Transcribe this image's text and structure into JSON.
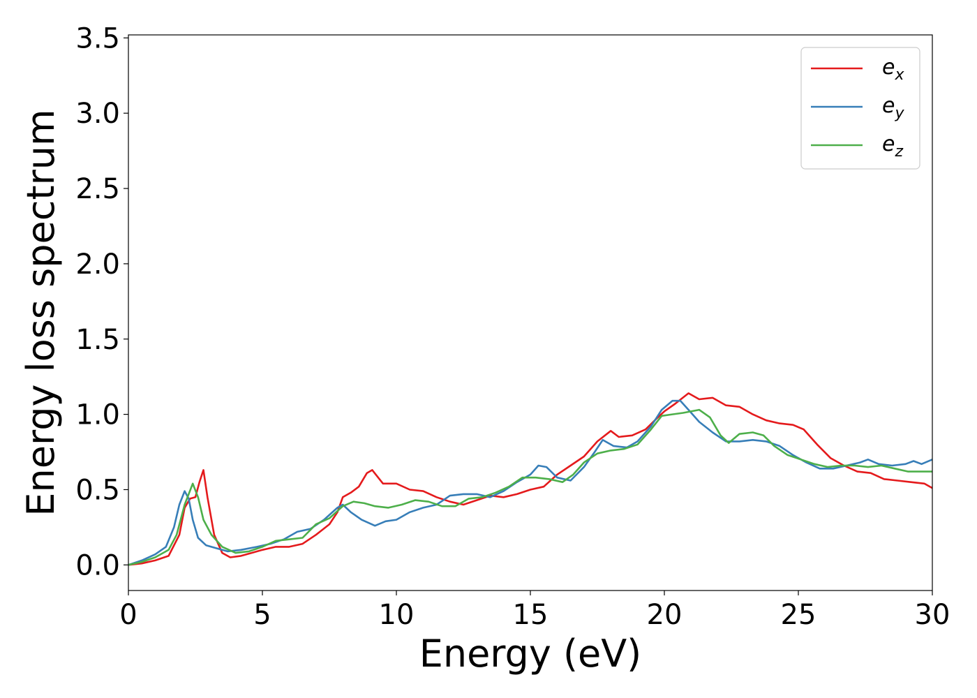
{
  "chart_data": {
    "type": "line",
    "xlabel": "Energy (eV)",
    "ylabel": "Energy loss spectrum",
    "xlim": [
      0,
      30
    ],
    "ylim": [
      -0.17,
      3.52
    ],
    "xticks": [
      0,
      5,
      10,
      15,
      20,
      25,
      30
    ],
    "xtick_labels": [
      "0",
      "5",
      "10",
      "15",
      "20",
      "25",
      "30"
    ],
    "yticks": [
      0.0,
      0.5,
      1.0,
      1.5,
      2.0,
      2.5,
      3.0,
      3.5
    ],
    "ytick_labels": [
      "0.0",
      "0.5",
      "1.0",
      "1.5",
      "2.0",
      "2.5",
      "3.0",
      "3.5"
    ],
    "grid": false,
    "legend_position": "top-right",
    "series": [
      {
        "name": "e",
        "subscript": "x",
        "color": "#e41a1c",
        "points": [
          [
            0,
            0.0
          ],
          [
            0.5,
            0.01
          ],
          [
            1.0,
            0.03
          ],
          [
            1.5,
            0.06
          ],
          [
            1.9,
            0.2
          ],
          [
            2.1,
            0.38
          ],
          [
            2.3,
            0.44
          ],
          [
            2.5,
            0.45
          ],
          [
            2.65,
            0.55
          ],
          [
            2.8,
            0.63
          ],
          [
            2.95,
            0.45
          ],
          [
            3.2,
            0.2
          ],
          [
            3.5,
            0.08
          ],
          [
            3.8,
            0.05
          ],
          [
            4.2,
            0.06
          ],
          [
            4.6,
            0.08
          ],
          [
            5.0,
            0.1
          ],
          [
            5.5,
            0.12
          ],
          [
            6.0,
            0.12
          ],
          [
            6.5,
            0.14
          ],
          [
            7.0,
            0.2
          ],
          [
            7.5,
            0.27
          ],
          [
            7.8,
            0.35
          ],
          [
            8.0,
            0.45
          ],
          [
            8.3,
            0.48
          ],
          [
            8.6,
            0.52
          ],
          [
            8.9,
            0.61
          ],
          [
            9.1,
            0.63
          ],
          [
            9.5,
            0.54
          ],
          [
            10.0,
            0.54
          ],
          [
            10.5,
            0.5
          ],
          [
            11.0,
            0.49
          ],
          [
            11.5,
            0.45
          ],
          [
            12.0,
            0.42
          ],
          [
            12.5,
            0.4
          ],
          [
            13.0,
            0.43
          ],
          [
            13.5,
            0.46
          ],
          [
            14.0,
            0.45
          ],
          [
            14.5,
            0.47
          ],
          [
            15.0,
            0.5
          ],
          [
            15.5,
            0.52
          ],
          [
            16.0,
            0.6
          ],
          [
            16.5,
            0.66
          ],
          [
            17.0,
            0.72
          ],
          [
            17.5,
            0.82
          ],
          [
            18.0,
            0.89
          ],
          [
            18.3,
            0.85
          ],
          [
            18.8,
            0.86
          ],
          [
            19.3,
            0.9
          ],
          [
            19.7,
            0.97
          ],
          [
            20.0,
            1.02
          ],
          [
            20.4,
            1.07
          ],
          [
            20.9,
            1.14
          ],
          [
            21.3,
            1.1
          ],
          [
            21.8,
            1.11
          ],
          [
            22.3,
            1.06
          ],
          [
            22.8,
            1.05
          ],
          [
            23.3,
            1.0
          ],
          [
            23.8,
            0.96
          ],
          [
            24.3,
            0.94
          ],
          [
            24.8,
            0.93
          ],
          [
            25.2,
            0.9
          ],
          [
            25.7,
            0.8
          ],
          [
            26.2,
            0.71
          ],
          [
            26.7,
            0.66
          ],
          [
            27.2,
            0.62
          ],
          [
            27.7,
            0.61
          ],
          [
            28.2,
            0.57
          ],
          [
            28.7,
            0.56
          ],
          [
            29.2,
            0.55
          ],
          [
            29.7,
            0.54
          ],
          [
            30.0,
            0.51
          ]
        ]
      },
      {
        "name": "e",
        "subscript": "y",
        "color": "#377eb8",
        "points": [
          [
            0,
            0.0
          ],
          [
            0.5,
            0.03
          ],
          [
            1.0,
            0.07
          ],
          [
            1.4,
            0.12
          ],
          [
            1.7,
            0.25
          ],
          [
            1.9,
            0.4
          ],
          [
            2.1,
            0.49
          ],
          [
            2.25,
            0.44
          ],
          [
            2.4,
            0.3
          ],
          [
            2.6,
            0.18
          ],
          [
            2.9,
            0.13
          ],
          [
            3.3,
            0.11
          ],
          [
            3.7,
            0.09
          ],
          [
            4.2,
            0.1
          ],
          [
            4.8,
            0.12
          ],
          [
            5.3,
            0.14
          ],
          [
            5.8,
            0.17
          ],
          [
            6.3,
            0.22
          ],
          [
            6.8,
            0.24
          ],
          [
            7.3,
            0.3
          ],
          [
            7.8,
            0.38
          ],
          [
            8.0,
            0.4
          ],
          [
            8.3,
            0.35
          ],
          [
            8.7,
            0.3
          ],
          [
            9.2,
            0.26
          ],
          [
            9.6,
            0.29
          ],
          [
            10.0,
            0.3
          ],
          [
            10.5,
            0.35
          ],
          [
            11.0,
            0.38
          ],
          [
            11.5,
            0.4
          ],
          [
            12.0,
            0.46
          ],
          [
            12.5,
            0.47
          ],
          [
            13.0,
            0.47
          ],
          [
            13.5,
            0.45
          ],
          [
            14.0,
            0.49
          ],
          [
            14.5,
            0.55
          ],
          [
            15.0,
            0.6
          ],
          [
            15.3,
            0.66
          ],
          [
            15.6,
            0.65
          ],
          [
            16.0,
            0.58
          ],
          [
            16.5,
            0.56
          ],
          [
            17.0,
            0.65
          ],
          [
            17.4,
            0.75
          ],
          [
            17.7,
            0.83
          ],
          [
            18.1,
            0.79
          ],
          [
            18.6,
            0.78
          ],
          [
            19.0,
            0.82
          ],
          [
            19.5,
            0.92
          ],
          [
            19.9,
            1.03
          ],
          [
            20.3,
            1.09
          ],
          [
            20.6,
            1.09
          ],
          [
            20.9,
            1.03
          ],
          [
            21.3,
            0.95
          ],
          [
            21.8,
            0.88
          ],
          [
            22.3,
            0.82
          ],
          [
            22.8,
            0.82
          ],
          [
            23.3,
            0.83
          ],
          [
            23.8,
            0.82
          ],
          [
            24.3,
            0.79
          ],
          [
            24.8,
            0.73
          ],
          [
            25.3,
            0.68
          ],
          [
            25.8,
            0.64
          ],
          [
            26.3,
            0.64
          ],
          [
            26.8,
            0.66
          ],
          [
            27.3,
            0.68
          ],
          [
            27.6,
            0.7
          ],
          [
            28.0,
            0.67
          ],
          [
            28.5,
            0.66
          ],
          [
            29.0,
            0.67
          ],
          [
            29.3,
            0.69
          ],
          [
            29.6,
            0.67
          ],
          [
            30.0,
            0.7
          ]
        ]
      },
      {
        "name": "e",
        "subscript": "z",
        "color": "#4daf4a",
        "points": [
          [
            0,
            0.0
          ],
          [
            0.5,
            0.02
          ],
          [
            1.0,
            0.05
          ],
          [
            1.5,
            0.1
          ],
          [
            1.8,
            0.2
          ],
          [
            2.1,
            0.4
          ],
          [
            2.4,
            0.54
          ],
          [
            2.6,
            0.45
          ],
          [
            2.8,
            0.3
          ],
          [
            3.1,
            0.2
          ],
          [
            3.5,
            0.12
          ],
          [
            4.0,
            0.08
          ],
          [
            4.5,
            0.09
          ],
          [
            5.0,
            0.12
          ],
          [
            5.5,
            0.16
          ],
          [
            6.0,
            0.17
          ],
          [
            6.5,
            0.18
          ],
          [
            7.0,
            0.27
          ],
          [
            7.5,
            0.31
          ],
          [
            8.0,
            0.39
          ],
          [
            8.4,
            0.42
          ],
          [
            8.8,
            0.41
          ],
          [
            9.2,
            0.39
          ],
          [
            9.7,
            0.38
          ],
          [
            10.2,
            0.4
          ],
          [
            10.7,
            0.43
          ],
          [
            11.2,
            0.42
          ],
          [
            11.7,
            0.39
          ],
          [
            12.2,
            0.39
          ],
          [
            12.7,
            0.44
          ],
          [
            13.2,
            0.45
          ],
          [
            13.7,
            0.48
          ],
          [
            14.2,
            0.52
          ],
          [
            14.7,
            0.58
          ],
          [
            15.2,
            0.58
          ],
          [
            15.7,
            0.57
          ],
          [
            16.2,
            0.55
          ],
          [
            16.6,
            0.6
          ],
          [
            17.0,
            0.68
          ],
          [
            17.5,
            0.74
          ],
          [
            18.0,
            0.76
          ],
          [
            18.5,
            0.77
          ],
          [
            19.0,
            0.8
          ],
          [
            19.5,
            0.9
          ],
          [
            19.9,
            0.99
          ],
          [
            20.3,
            1.0
          ],
          [
            20.7,
            1.01
          ],
          [
            21.3,
            1.03
          ],
          [
            21.7,
            0.98
          ],
          [
            22.1,
            0.86
          ],
          [
            22.4,
            0.81
          ],
          [
            22.8,
            0.87
          ],
          [
            23.3,
            0.88
          ],
          [
            23.7,
            0.86
          ],
          [
            24.1,
            0.79
          ],
          [
            24.6,
            0.73
          ],
          [
            25.1,
            0.7
          ],
          [
            25.6,
            0.67
          ],
          [
            26.1,
            0.65
          ],
          [
            26.6,
            0.66
          ],
          [
            27.1,
            0.66
          ],
          [
            27.6,
            0.65
          ],
          [
            28.1,
            0.66
          ],
          [
            28.6,
            0.64
          ],
          [
            29.1,
            0.62
          ],
          [
            29.6,
            0.62
          ],
          [
            30.0,
            0.62
          ]
        ]
      }
    ]
  }
}
